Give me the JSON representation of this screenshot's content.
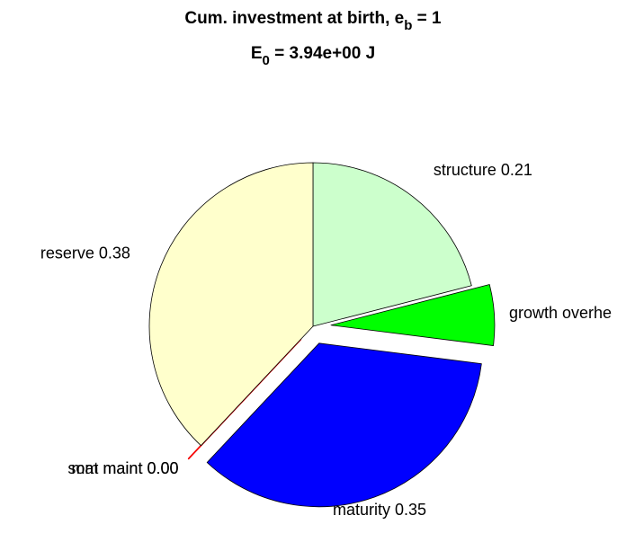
{
  "chart_data": {
    "type": "pie",
    "title": {
      "text": "Cum. investment at birth, e",
      "sub": "b",
      "tail": " = 1"
    },
    "subtitle": {
      "text": "E",
      "sub": "0",
      "tail": " = 3.94e+00 J"
    },
    "categories": [
      "structure",
      "growth overhe",
      "maturity",
      "som maint",
      "mat maint",
      "reserve"
    ],
    "values": [
      0.21,
      0.06,
      0.35,
      0.0,
      0.0,
      0.38
    ],
    "value_labels": [
      "structure 0.21",
      "growth overhe",
      "maturity 0.35",
      "som maint 0.00",
      "mat maint 0.00",
      "reserve 0.38"
    ],
    "colors": [
      "#ccffcc",
      "#00ff00",
      "#0000ff",
      "#800000",
      "#ff0000",
      "#ffffcc"
    ],
    "explode": [
      0,
      1,
      1,
      1,
      1,
      0
    ]
  }
}
